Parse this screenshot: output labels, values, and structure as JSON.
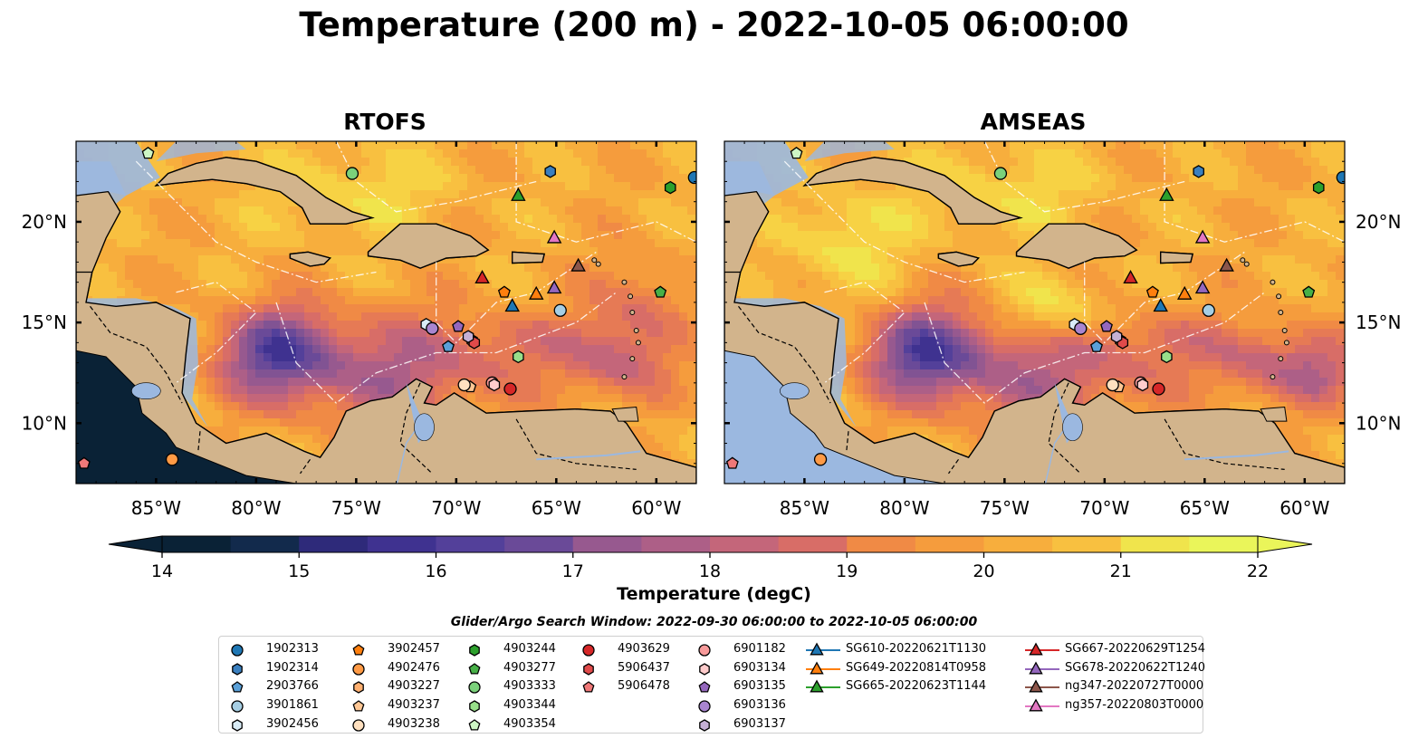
{
  "title": "Temperature (200 m) - 2022-10-05 06:00:00",
  "panels": [
    {
      "title": "RTOFS"
    },
    {
      "title": "AMSEAS"
    }
  ],
  "axes": {
    "lon_ticks": [
      "85°W",
      "80°W",
      "75°W",
      "70°W",
      "65°W",
      "60°W"
    ],
    "lat_ticks": [
      "20°N",
      "15°N",
      "10°N"
    ]
  },
  "colors": {
    "land": "#d2b48c",
    "shelf": "#9bb8e0",
    "colormap": [
      "#0a2236",
      "#122a4c",
      "#221e60",
      "#2e2a7a",
      "#3f3290",
      "#53409a",
      "#6a4a98",
      "#815393",
      "#97598f",
      "#ad5f87",
      "#c4667a",
      "#d86d67",
      "#e67a55",
      "#f08a45",
      "#f59c3d",
      "#f7ae3d",
      "#f8c040",
      "#f7d244",
      "#f0e44c",
      "#eaf55a"
    ]
  },
  "colorbar": {
    "ticks": [
      "14",
      "15",
      "16",
      "17",
      "18",
      "19",
      "20",
      "21",
      "22"
    ],
    "label": "Temperature (degC)"
  },
  "chart_data": {
    "type": "heatmap",
    "variable": "Temperature",
    "units": "degC",
    "depth": "200 m",
    "time": "2022-10-05 06:00:00",
    "color_range": [
      14,
      22
    ],
    "extend": "both",
    "lon_range": [
      -89,
      -58
    ],
    "lat_range": [
      7,
      24
    ],
    "panels": [
      "RTOFS",
      "AMSEAS"
    ],
    "colorbar_label": "Temperature (degC)"
  },
  "legend": {
    "header": "Glider/Argo Search Window: 2022-09-30 06:00:00 to 2022-10-05 06:00:00",
    "items": [
      {
        "label": "1902313",
        "marker": "circle",
        "color": "#1f77b4"
      },
      {
        "label": "1902314",
        "marker": "hexagon",
        "color": "#3a7fbf"
      },
      {
        "label": "2903766",
        "marker": "pentagon",
        "color": "#5aa0d8"
      },
      {
        "label": "3901861",
        "marker": "circle",
        "color": "#a6cee3"
      },
      {
        "label": "3902456",
        "marker": "hexagon",
        "color": "#d9ecf7"
      },
      {
        "label": "3902457",
        "marker": "pentagon",
        "color": "#ff7f0e"
      },
      {
        "label": "4902476",
        "marker": "circle",
        "color": "#ff9a45"
      },
      {
        "label": "4903227",
        "marker": "hexagon",
        "color": "#ffb070"
      },
      {
        "label": "4903237",
        "marker": "pentagon",
        "color": "#ffc794"
      },
      {
        "label": "4903238",
        "marker": "circle",
        "color": "#ffe0bf"
      },
      {
        "label": "4903244",
        "marker": "hexagon",
        "color": "#2ca02c"
      },
      {
        "label": "4903277",
        "marker": "pentagon",
        "color": "#47b047"
      },
      {
        "label": "4903333",
        "marker": "circle",
        "color": "#7bd17b"
      },
      {
        "label": "4903344",
        "marker": "hexagon",
        "color": "#98df8a"
      },
      {
        "label": "4903354",
        "marker": "pentagon",
        "color": "#cdf5c4"
      },
      {
        "label": "4903629",
        "marker": "circle",
        "color": "#d62728"
      },
      {
        "label": "5906437",
        "marker": "hexagon",
        "color": "#e04a4a"
      },
      {
        "label": "5906478",
        "marker": "pentagon",
        "color": "#f07878"
      },
      {
        "label": "6901182",
        "marker": "circle",
        "color": "#f79a9a"
      },
      {
        "label": "6903134",
        "marker": "hexagon",
        "color": "#ffcccc"
      },
      {
        "label": "6903135",
        "marker": "pentagon",
        "color": "#9467bd"
      },
      {
        "label": "6903136",
        "marker": "circle",
        "color": "#a985cf"
      },
      {
        "label": "6903137",
        "marker": "hexagon",
        "color": "#c5b0d5"
      },
      {
        "label": "SG610-20220621T1130",
        "marker": "triangle",
        "color": "#1f77b4"
      },
      {
        "label": "SG649-20220814T0958",
        "marker": "triangle",
        "color": "#ff7f0e"
      },
      {
        "label": "SG665-20220623T1144",
        "marker": "triangle",
        "color": "#2ca02c"
      },
      {
        "label": "SG667-20220629T1254",
        "marker": "triangle",
        "color": "#d62728"
      },
      {
        "label": "SG678-20220622T1240",
        "marker": "triangle",
        "color": "#9467bd"
      },
      {
        "label": "ng347-20220727T0000",
        "marker": "triangle",
        "color": "#8c564b"
      },
      {
        "label": "ng357-20220803T0000",
        "marker": "triangle",
        "color": "#e377c2"
      }
    ]
  }
}
